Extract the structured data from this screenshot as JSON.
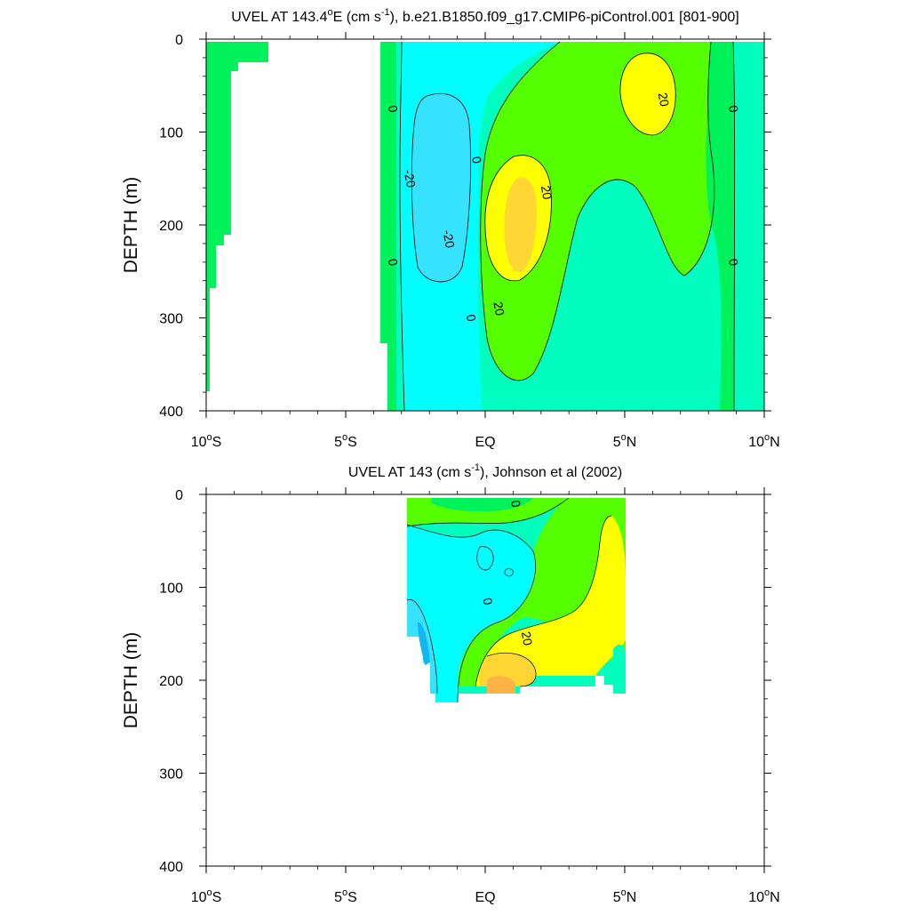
{
  "chart_data": [
    {
      "type": "contour",
      "title": {
        "prefix": "UVEL AT 143.4",
        "degree": "o",
        "mid": "E (cm s",
        "sup": "-1",
        "suffix": "), b.e21.B1850.f09_g17.CMIP6-piControl.001 [801-900]"
      },
      "xlabel": "",
      "ylabel": "DEPTH (m)",
      "xlim": [
        -10,
        10
      ],
      "ylim": [
        0,
        400
      ],
      "y_inverted": true,
      "x_ticks": [
        {
          "value": -10,
          "num": "10",
          "deg": "o",
          "hemi": "S"
        },
        {
          "value": -5,
          "num": "5",
          "deg": "o",
          "hemi": "S"
        },
        {
          "value": 0,
          "num": "EQ",
          "deg": "",
          "hemi": ""
        },
        {
          "value": 5,
          "num": "5",
          "deg": "o",
          "hemi": "N"
        },
        {
          "value": 10,
          "num": "10",
          "deg": "o",
          "hemi": "N"
        }
      ],
      "y_ticks": [
        0,
        100,
        200,
        300,
        400
      ],
      "levels": [
        -30,
        -20,
        -10,
        0,
        10,
        20,
        30
      ],
      "colors": {
        "neg20_to_neg10": "#35e3ff",
        "neg10_to_0": "#00ffff",
        "0_to_10": "#00ffbf",
        "10_to_20": "#00f25a",
        "20_to_30": "#55ff00",
        "30_to_40": "#ffff00",
        "40_plus": "#ffd633"
      },
      "contour_labels": [
        {
          "text": "0",
          "x": -3.3,
          "y": 75
        },
        {
          "text": "-20",
          "x": -2.7,
          "y": 150
        },
        {
          "text": "0",
          "x": -0.3,
          "y": 130
        },
        {
          "text": "-20",
          "x": -1.3,
          "y": 215
        },
        {
          "text": "20",
          "x": 2.2,
          "y": 165
        },
        {
          "text": "20",
          "x": 0.5,
          "y": 290
        },
        {
          "text": "0",
          "x": -0.5,
          "y": 300
        },
        {
          "text": "0",
          "x": -3.3,
          "y": 240
        },
        {
          "text": "20",
          "x": 6.4,
          "y": 65
        },
        {
          "text": "0",
          "x": 8.9,
          "y": 75
        },
        {
          "text": "0",
          "x": 8.9,
          "y": 240
        }
      ]
    },
    {
      "type": "contour",
      "title": {
        "prefix": "UVEL AT 143 (cm s",
        "sup": "-1",
        "suffix": "), Johnson et al (2002)"
      },
      "xlabel": "",
      "ylabel": "DEPTH (m)",
      "xlim": [
        -10,
        10
      ],
      "ylim": [
        0,
        400
      ],
      "y_inverted": true,
      "x_ticks": [
        {
          "value": -10,
          "num": "10",
          "deg": "o",
          "hemi": "S"
        },
        {
          "value": -5,
          "num": "5",
          "deg": "o",
          "hemi": "S"
        },
        {
          "value": 0,
          "num": "EQ",
          "deg": "",
          "hemi": ""
        },
        {
          "value": 5,
          "num": "5",
          "deg": "o",
          "hemi": "N"
        },
        {
          "value": 10,
          "num": "10",
          "deg": "o",
          "hemi": "N"
        }
      ],
      "y_ticks": [
        0,
        100,
        200,
        300,
        400
      ],
      "data_extent": {
        "x_min": -2.9,
        "x_max": 5.0,
        "y_min": 0,
        "y_max": 215
      },
      "contour_labels": [
        {
          "text": "0",
          "x": 1.1,
          "y": 10
        },
        {
          "text": "0",
          "x": 0.1,
          "y": 115
        },
        {
          "text": "20",
          "x": 1.5,
          "y": 155
        }
      ]
    }
  ]
}
